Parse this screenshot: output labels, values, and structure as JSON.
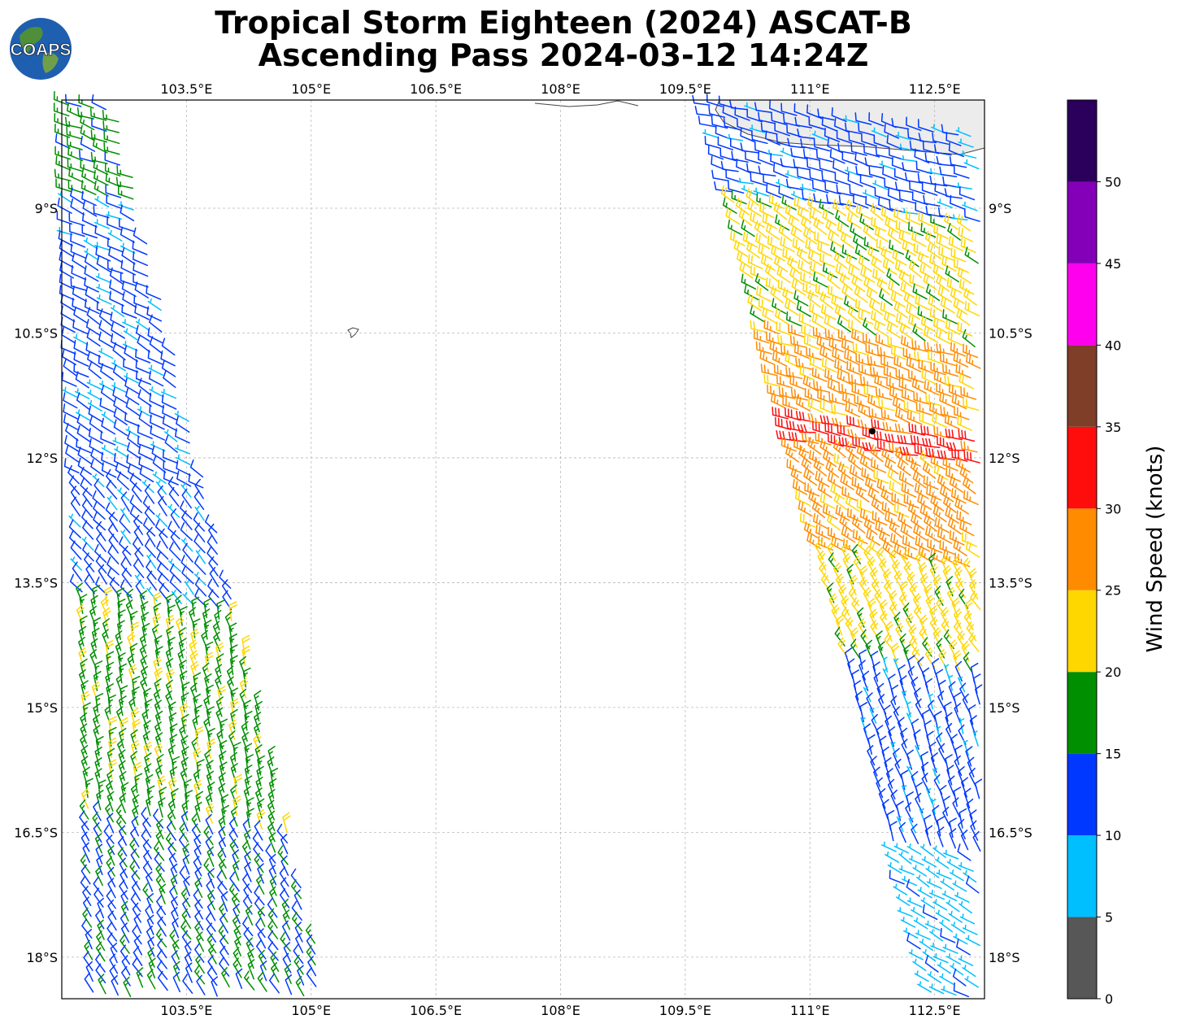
{
  "title": {
    "line1": "Tropical Storm Eighteen (2024) ASCAT-B",
    "line2": "Ascending Pass 2024-03-12 14:24Z"
  },
  "logo": {
    "text": "COAPS",
    "icon": "globe-icon"
  },
  "map": {
    "lon_range": [
      102.0,
      113.1
    ],
    "lat_range": [
      -18.5,
      -7.7
    ],
    "lon_ticks": [
      {
        "value": 103.5,
        "label": "103.5°E"
      },
      {
        "value": 105.0,
        "label": "105°E"
      },
      {
        "value": 106.5,
        "label": "106.5°E"
      },
      {
        "value": 108.0,
        "label": "108°E"
      },
      {
        "value": 109.5,
        "label": "109.5°E"
      },
      {
        "value": 111.0,
        "label": "111°E"
      },
      {
        "value": 112.5,
        "label": "112.5°E"
      }
    ],
    "lat_ticks": [
      {
        "value": -9.0,
        "label": "9°S"
      },
      {
        "value": -10.5,
        "label": "10.5°S"
      },
      {
        "value": -12.0,
        "label": "12°S"
      },
      {
        "value": -13.5,
        "label": "13.5°S"
      },
      {
        "value": -15.0,
        "label": "15°S"
      },
      {
        "value": -16.5,
        "label": "16.5°S"
      },
      {
        "value": -18.0,
        "label": "18°S"
      }
    ],
    "grid": true,
    "storm_center": {
      "lon": 111.75,
      "lat": -11.68
    }
  },
  "colorbar": {
    "title": "Wind Speed (knots)",
    "bins": [
      {
        "from": 0,
        "to": 5,
        "color": "#575757"
      },
      {
        "from": 5,
        "to": 10,
        "color": "#00bfff"
      },
      {
        "from": 10,
        "to": 15,
        "color": "#0038ff"
      },
      {
        "from": 15,
        "to": 20,
        "color": "#008f00"
      },
      {
        "from": 20,
        "to": 25,
        "color": "#ffd700"
      },
      {
        "from": 25,
        "to": 30,
        "color": "#ff8c00"
      },
      {
        "from": 30,
        "to": 35,
        "color": "#ff0d0d"
      },
      {
        "from": 35,
        "to": 40,
        "color": "#7f3e28"
      },
      {
        "from": 40,
        "to": 45,
        "color": "#ff00ee"
      },
      {
        "from": 45,
        "to": 50,
        "color": "#8400b8"
      },
      {
        "from": 50,
        "to": 55,
        "color": "#2b005c"
      }
    ],
    "tick_labels": [
      "0",
      "5",
      "10",
      "15",
      "20",
      "25",
      "30",
      "35",
      "40",
      "45",
      "50"
    ]
  },
  "swaths": [
    {
      "name": "west-swath",
      "edges": {
        "top": [
          102.0,
          102.65
        ],
        "bottom": [
          102.3,
          105.3
        ]
      },
      "wind_zones": [
        {
          "lat_from": -7.7,
          "lat_to": -8.9,
          "speed_kt": 17,
          "dir_deg": 290
        },
        {
          "lat_from": -8.9,
          "lat_to": -10.0,
          "speed_kt": 12,
          "dir_deg": 295
        },
        {
          "lat_from": -10.0,
          "lat_to": -12.3,
          "speed_kt": 12,
          "dir_deg": 300
        },
        {
          "lat_from": -12.3,
          "lat_to": -13.7,
          "speed_kt": 12,
          "dir_deg": 320
        },
        {
          "lat_from": -13.7,
          "lat_to": -16.3,
          "speed_kt": 18,
          "dir_deg": 345
        },
        {
          "lat_from": -16.3,
          "lat_to": -18.5,
          "speed_kt": 14,
          "dir_deg": 330
        }
      ]
    },
    {
      "name": "east-swath",
      "edges": {
        "top": [
          109.7,
          113.1
        ],
        "bottom": [
          112.4,
          113.1
        ]
      },
      "wind_zones": [
        {
          "lat_from": -7.7,
          "lat_to": -8.8,
          "speed_kt": 12,
          "dir_deg": 285
        },
        {
          "lat_from": -8.8,
          "lat_to": -10.4,
          "speed_kt": 22,
          "dir_deg": 300
        },
        {
          "lat_from": -10.4,
          "lat_to": -11.4,
          "speed_kt": 27,
          "dir_deg": 290
        },
        {
          "lat_from": -11.4,
          "lat_to": -11.9,
          "speed_kt": 32,
          "dir_deg": 280
        },
        {
          "lat_from": -11.9,
          "lat_to": -13.2,
          "speed_kt": 27,
          "dir_deg": 300
        },
        {
          "lat_from": -13.2,
          "lat_to": -14.4,
          "speed_kt": 22,
          "dir_deg": 330
        },
        {
          "lat_from": -14.4,
          "lat_to": -16.7,
          "speed_kt": 12,
          "dir_deg": 340
        },
        {
          "lat_from": -16.7,
          "lat_to": -18.5,
          "speed_kt": 8,
          "dir_deg": 300
        }
      ]
    }
  ]
}
